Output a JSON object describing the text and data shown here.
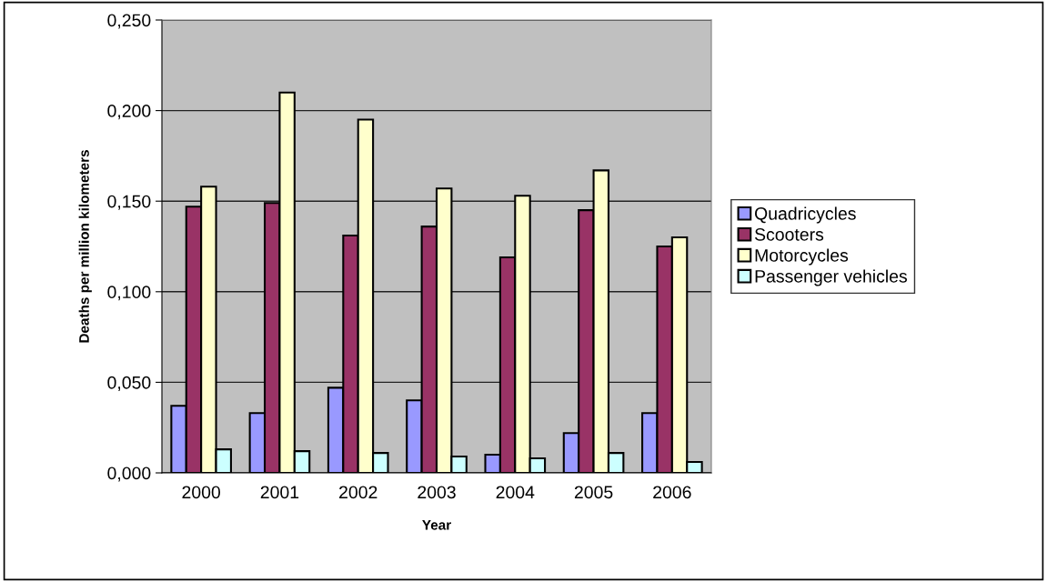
{
  "chart_data": {
    "type": "bar",
    "xlabel": "Year",
    "ylabel": "Deaths per million kilometers",
    "categories": [
      "2000",
      "2001",
      "2002",
      "2003",
      "2004",
      "2005",
      "2006"
    ],
    "series": [
      {
        "name": "Quadricycles",
        "color": "#9999ff",
        "values": [
          0.037,
          0.033,
          0.047,
          0.04,
          0.01,
          0.022,
          0.033
        ]
      },
      {
        "name": "Scooters",
        "color": "#993366",
        "values": [
          0.147,
          0.149,
          0.131,
          0.136,
          0.119,
          0.145,
          0.125
        ]
      },
      {
        "name": "Motorcycles",
        "color": "#ffffcc",
        "values": [
          0.158,
          0.21,
          0.195,
          0.157,
          0.153,
          0.167,
          0.13
        ]
      },
      {
        "name": "Passenger vehicles",
        "color": "#ccffff",
        "values": [
          0.013,
          0.012,
          0.011,
          0.009,
          0.008,
          0.011,
          0.006
        ]
      }
    ],
    "ylim": [
      0,
      0.25
    ],
    "yticks": [
      {
        "value": 0,
        "label": "0,000"
      },
      {
        "value": 0.05,
        "label": "0,050"
      },
      {
        "value": 0.1,
        "label": "0,100"
      },
      {
        "value": 0.15,
        "label": "0,150"
      },
      {
        "value": 0.2,
        "label": "0,200"
      },
      {
        "value": 0.25,
        "label": "0,250"
      }
    ],
    "grid": "y",
    "legend": "right"
  }
}
